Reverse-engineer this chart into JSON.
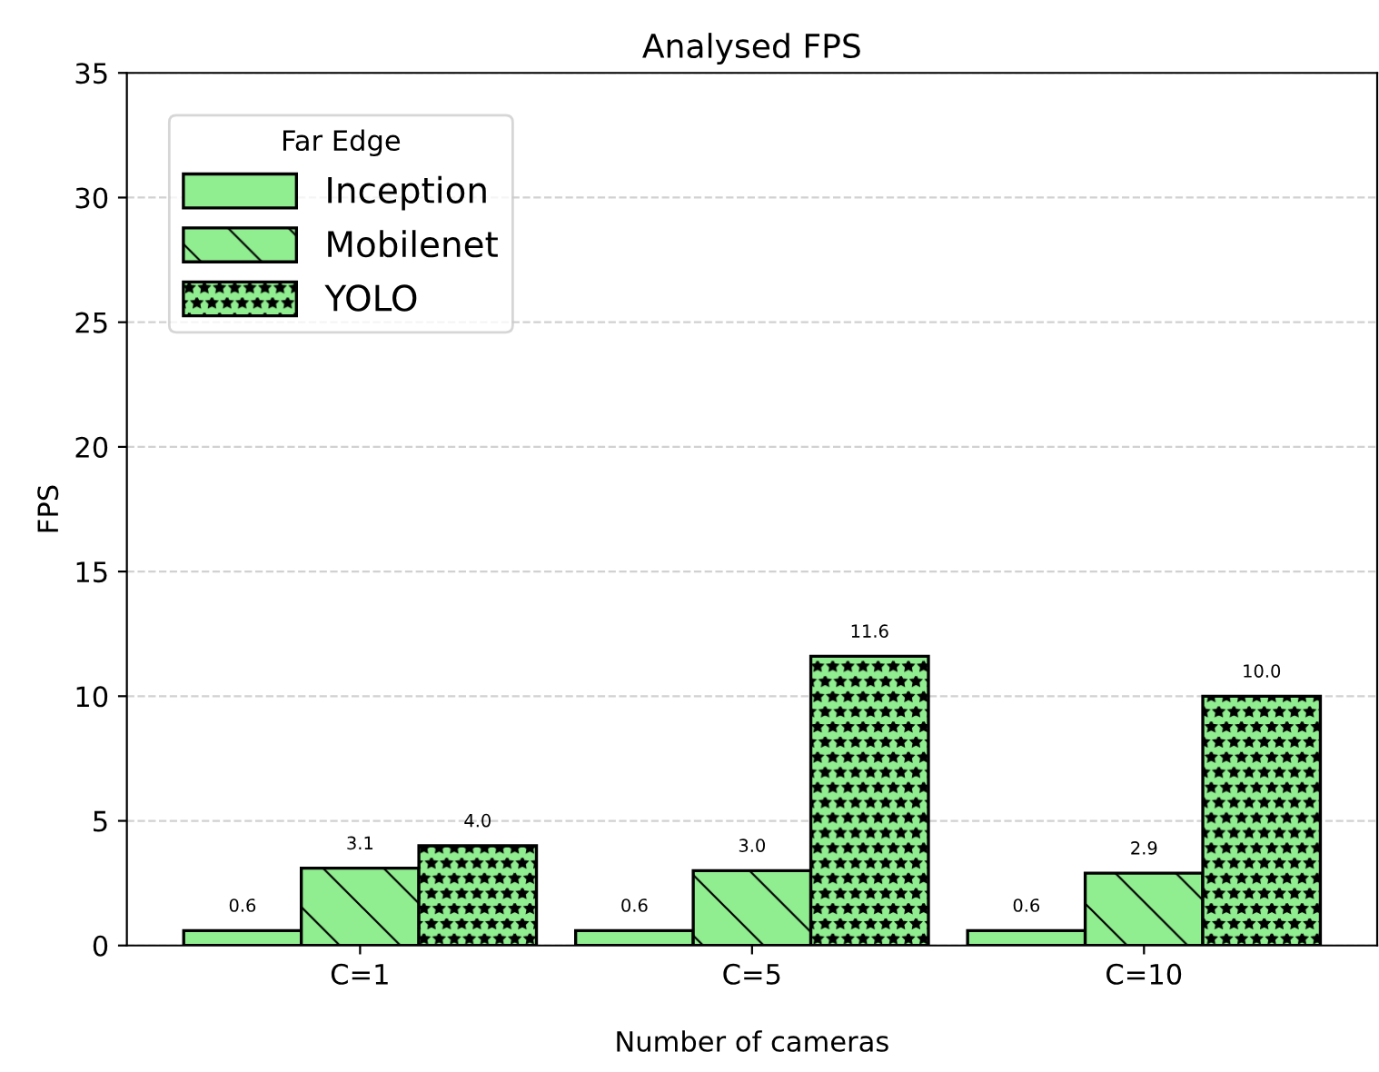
{
  "chart_data": {
    "type": "bar",
    "title": "Analysed FPS",
    "xlabel": "Number of cameras",
    "ylabel": "FPS",
    "categories": [
      "C=1",
      "C=5",
      "C=10"
    ],
    "series": [
      {
        "name": "Inception",
        "color": "#90ee90",
        "values": [
          0.6,
          0.6,
          0.6
        ],
        "value_labels": [
          "0.6",
          "0.6",
          "0.6"
        ]
      },
      {
        "name": "Mobilenet",
        "color": "#90ee90",
        "values": [
          3.1,
          3.0,
          2.9
        ],
        "value_labels": [
          "3.1",
          "3.0",
          "2.9"
        ]
      },
      {
        "name": "YOLO",
        "color": "#90ee90",
        "values": [
          4.0,
          11.6,
          10.0
        ],
        "value_labels": [
          "4.0",
          "11.6",
          "10.0"
        ]
      }
    ],
    "legend_title": "Far Edge",
    "legend": "top left",
    "ylim": [
      0,
      35
    ],
    "yticks": [
      0,
      5,
      10,
      15,
      20,
      25,
      30,
      35
    ],
    "grid": "y"
  }
}
